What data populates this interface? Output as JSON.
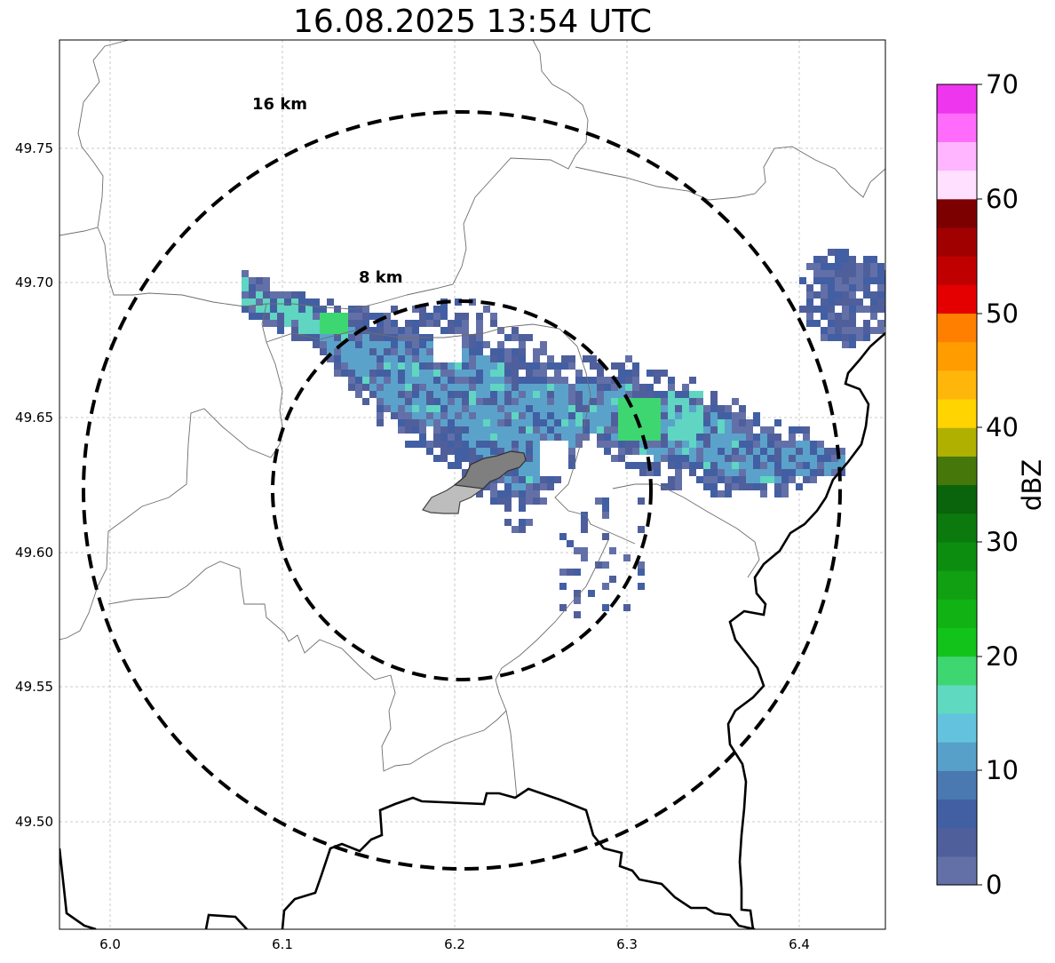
{
  "title": "16.08.2025 13:54 UTC",
  "map": {
    "lon_range": [
      5.97,
      6.45
    ],
    "lat_range": [
      49.46,
      49.79
    ],
    "x_ticks": [
      "6.0",
      "6.1",
      "6.2",
      "6.3",
      "6.4"
    ],
    "y_ticks": [
      "49.50",
      "49.55",
      "49.60",
      "49.65",
      "49.70",
      "49.75"
    ],
    "grid": true
  },
  "range_rings": [
    {
      "label": "16 km"
    },
    {
      "label": "8 km"
    }
  ],
  "colorbar": {
    "label": "dBZ",
    "ticks": [
      "0",
      "10",
      "20",
      "30",
      "40",
      "50",
      "60",
      "70"
    ],
    "min": 0,
    "max": 70,
    "colors": [
      "#6370a8",
      "#4f5f9c",
      "#425fa3",
      "#4a78b0",
      "#56a0c9",
      "#63c3de",
      "#5fd9c0",
      "#3ed671",
      "#12c41a",
      "#10b313",
      "#10a011",
      "#0d8d0f",
      "#0b790d",
      "#0a640b",
      "#46770a",
      "#b0b000",
      "#ffd400",
      "#ffb60a",
      "#ff9c00",
      "#ff7f00",
      "#e40000",
      "#c00000",
      "#a00000",
      "#7c0000",
      "#ffe0ff",
      "#ffb5ff",
      "#ff6cfb",
      "#ee36ef"
    ]
  },
  "reflectivity_legend_colors": {
    "weak": "#4f5f9c",
    "light": "#5ba2cb",
    "moderate": "#5fd5c2",
    "strong": "#3ed671"
  }
}
